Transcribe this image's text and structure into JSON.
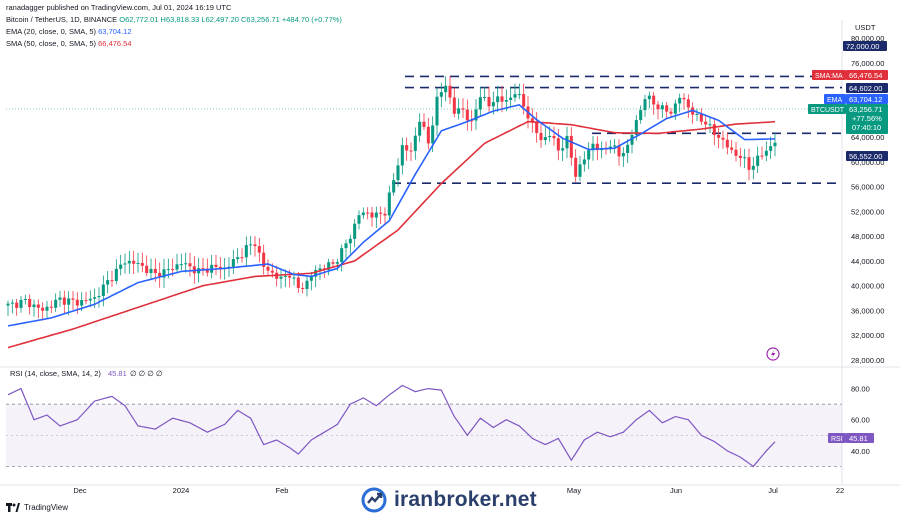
{
  "header": {
    "published": "ranadagger published on TradingView.com, Jul 01, 2024 16:19 UTC",
    "symbol": "Bitcoin / TetherUS, 1D, BINANCE",
    "ohlc": "O62,772.01 H63,818.33 L62,497.20 C63,256.71 +484.70 (+0.77%)",
    "ema_label": "EMA (20, close, 0, SMA, 5)",
    "ema_value": "63,704.12",
    "sma_label": "SMA (50, close, 0, SMA, 5)",
    "sma_value": "66,476.54"
  },
  "price_axis": {
    "currency": "USDT",
    "ticks": [
      "80,000.00",
      "76,000.00",
      "72,000.00",
      "68,000.00",
      "64,000.00",
      "60,000.00",
      "56,000.00",
      "52,000.00",
      "48,000.00",
      "44,000.00",
      "40,000.00",
      "36,000.00",
      "32,000.00",
      "28,000.00"
    ]
  },
  "badges": {
    "level_top": "72,000.00",
    "sma": {
      "label": "SMA:MA",
      "value": "66,476.54"
    },
    "level_mid": "64,602.00",
    "ema": {
      "label": "EMA",
      "value": "63,704.12"
    },
    "price": {
      "label": "BTCUSDT",
      "value": "63,256.71",
      "change": "+77.56%",
      "timer": "07:40:10"
    },
    "level_low": "56,552.00"
  },
  "rsi": {
    "label": "RSI (14, close, SMA, 14, 2)",
    "value": "45.81",
    "zeros": "∅ ∅ ∅ ∅",
    "ticks": [
      "80.00",
      "60.00",
      "40.00"
    ],
    "badge": "RSI",
    "badge_value": "45.81",
    "upper": 70,
    "lower": 30
  },
  "time_axis": [
    "Dec",
    "2024",
    "Feb",
    "May",
    "Jun",
    "Jul",
    "22"
  ],
  "footer": {
    "brand": "TradingView",
    "watermark": "iranbroker.net"
  },
  "colors": {
    "up": "#089981",
    "down": "#f23645",
    "ema": "#2962ff",
    "sma": "#e0303b",
    "rsi": "#7e57c2",
    "level": "#1b2a6b"
  },
  "chart_data": {
    "type": "candlestick",
    "title": "Bitcoin / TetherUS, 1D, BINANCE",
    "ylim": [
      28000,
      80000
    ],
    "levels": [
      72000,
      64602,
      56552
    ],
    "price_path": [
      [
        0,
        36800
      ],
      [
        4,
        37500
      ],
      [
        8,
        36000
      ],
      [
        12,
        37800
      ],
      [
        16,
        37300
      ],
      [
        20,
        38000
      ],
      [
        24,
        41500
      ],
      [
        27,
        44000
      ],
      [
        30,
        43500
      ],
      [
        34,
        41800
      ],
      [
        37,
        42500
      ],
      [
        40,
        43700
      ],
      [
        44,
        42300
      ],
      [
        47,
        43000
      ],
      [
        50,
        42800
      ],
      [
        53,
        44500
      ],
      [
        55,
        46000
      ],
      [
        57,
        47000
      ],
      [
        59,
        43000
      ],
      [
        61,
        42000
      ],
      [
        63,
        41000
      ],
      [
        65,
        42000
      ],
      [
        67,
        39500
      ],
      [
        69,
        40500
      ],
      [
        71,
        42500
      ],
      [
        73,
        43000
      ],
      [
        75,
        43500
      ],
      [
        77,
        45500
      ],
      [
        79,
        48000
      ],
      [
        81,
        51500
      ],
      [
        83,
        51800
      ],
      [
        85,
        51200
      ],
      [
        87,
        52000
      ],
      [
        89,
        57000
      ],
      [
        91,
        62500
      ],
      [
        93,
        61500
      ],
      [
        95,
        67000
      ],
      [
        97,
        63000
      ],
      [
        99,
        70000
      ],
      [
        101,
        72500
      ],
      [
        103,
        68000
      ],
      [
        105,
        68500
      ],
      [
        107,
        66000
      ],
      [
        109,
        71000
      ],
      [
        111,
        69000
      ],
      [
        113,
        70500
      ],
      [
        115,
        69500
      ],
      [
        117,
        71500
      ],
      [
        119,
        69000
      ],
      [
        121,
        66000
      ],
      [
        123,
        63500
      ],
      [
        125,
        64500
      ],
      [
        127,
        62000
      ],
      [
        129,
        63500
      ],
      [
        131,
        58000
      ],
      [
        133,
        60500
      ],
      [
        135,
        63000
      ],
      [
        137,
        61500
      ],
      [
        139,
        63000
      ],
      [
        141,
        61000
      ],
      [
        143,
        62500
      ],
      [
        145,
        66500
      ],
      [
        147,
        70500
      ],
      [
        149,
        69500
      ],
      [
        151,
        68500
      ],
      [
        153,
        68000
      ],
      [
        155,
        70500
      ],
      [
        157,
        69000
      ],
      [
        159,
        67000
      ],
      [
        161,
        66500
      ],
      [
        163,
        64500
      ],
      [
        165,
        63500
      ],
      [
        167,
        61500
      ],
      [
        169,
        61000
      ],
      [
        171,
        59000
      ],
      [
        173,
        60500
      ],
      [
        175,
        61800
      ],
      [
        177,
        63300
      ]
    ],
    "ema20_path": [
      [
        0,
        33500
      ],
      [
        10,
        34800
      ],
      [
        20,
        37000
      ],
      [
        30,
        40500
      ],
      [
        40,
        42300
      ],
      [
        50,
        42800
      ],
      [
        60,
        43500
      ],
      [
        66,
        41800
      ],
      [
        70,
        41500
      ],
      [
        76,
        42800
      ],
      [
        82,
        47000
      ],
      [
        88,
        50500
      ],
      [
        94,
        58000
      ],
      [
        100,
        65000
      ],
      [
        106,
        66500
      ],
      [
        112,
        68200
      ],
      [
        118,
        69200
      ],
      [
        122,
        66800
      ],
      [
        128,
        63800
      ],
      [
        134,
        62000
      ],
      [
        140,
        62200
      ],
      [
        146,
        64500
      ],
      [
        152,
        67000
      ],
      [
        158,
        68300
      ],
      [
        164,
        66700
      ],
      [
        170,
        63600
      ],
      [
        177,
        63704
      ]
    ],
    "sma50_path": [
      [
        0,
        30000
      ],
      [
        15,
        33000
      ],
      [
        30,
        36500
      ],
      [
        45,
        40000
      ],
      [
        57,
        41500
      ],
      [
        70,
        42000
      ],
      [
        80,
        44000
      ],
      [
        90,
        49000
      ],
      [
        100,
        56500
      ],
      [
        110,
        63000
      ],
      [
        120,
        66500
      ],
      [
        130,
        66000
      ],
      [
        140,
        64700
      ],
      [
        150,
        64600
      ],
      [
        160,
        65300
      ],
      [
        168,
        66100
      ],
      [
        177,
        66476
      ]
    ],
    "rsi_path": [
      [
        0,
        76
      ],
      [
        3,
        80
      ],
      [
        6,
        60
      ],
      [
        9,
        63
      ],
      [
        12,
        56
      ],
      [
        16,
        60
      ],
      [
        20,
        72
      ],
      [
        24,
        75
      ],
      [
        27,
        69
      ],
      [
        30,
        56
      ],
      [
        34,
        54
      ],
      [
        38,
        61
      ],
      [
        42,
        58
      ],
      [
        46,
        52
      ],
      [
        50,
        57
      ],
      [
        53,
        66
      ],
      [
        56,
        61
      ],
      [
        59,
        44
      ],
      [
        62,
        47
      ],
      [
        65,
        42
      ],
      [
        67,
        38
      ],
      [
        70,
        47
      ],
      [
        73,
        52
      ],
      [
        76,
        57
      ],
      [
        79,
        70
      ],
      [
        82,
        74
      ],
      [
        85,
        69
      ],
      [
        88,
        76
      ],
      [
        91,
        82
      ],
      [
        94,
        78
      ],
      [
        97,
        80
      ],
      [
        100,
        79
      ],
      [
        103,
        62
      ],
      [
        106,
        50
      ],
      [
        109,
        61
      ],
      [
        112,
        55
      ],
      [
        115,
        60
      ],
      [
        118,
        56
      ],
      [
        121,
        48
      ],
      [
        124,
        44
      ],
      [
        127,
        48
      ],
      [
        130,
        34
      ],
      [
        133,
        47
      ],
      [
        136,
        52
      ],
      [
        139,
        49
      ],
      [
        142,
        52
      ],
      [
        145,
        60
      ],
      [
        148,
        66
      ],
      [
        151,
        58
      ],
      [
        154,
        62
      ],
      [
        157,
        60
      ],
      [
        160,
        50
      ],
      [
        163,
        46
      ],
      [
        166,
        40
      ],
      [
        169,
        36
      ],
      [
        172,
        30
      ],
      [
        175,
        40
      ],
      [
        177,
        45.81
      ]
    ]
  }
}
